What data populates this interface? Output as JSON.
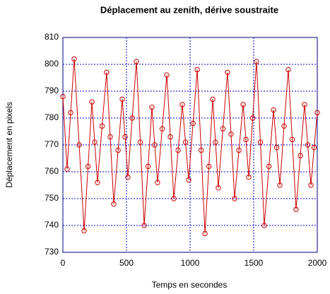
{
  "chart_data": {
    "type": "scatter",
    "title": "Déplacement au zenith, dérive soustraite",
    "x_label": "Temps en secondes",
    "y_label": "Déplacement en pixels",
    "xlim": [
      0,
      2000
    ],
    "xticks": [
      0,
      500,
      1000,
      1500,
      2000
    ],
    "ylim": [
      730,
      810
    ],
    "yticks": [
      730,
      740,
      750,
      760,
      770,
      780,
      790,
      800,
      810
    ],
    "grid": true,
    "grid_color": "#0000cc",
    "color": "#cc0000",
    "x": [
      0,
      33,
      61,
      89,
      128,
      167,
      198,
      228,
      250,
      272,
      308,
      344,
      372,
      400,
      434,
      467,
      489,
      511,
      545,
      578,
      609,
      639,
      670,
      700,
      722,
      744,
      781,
      817,
      845,
      872,
      906,
      939,
      964,
      989,
      1023,
      1056,
      1087,
      1117,
      1148,
      1178,
      1200,
      1222,
      1258,
      1294,
      1322,
      1350,
      1384,
      1417,
      1439,
      1461,
      1492,
      1522,
      1553,
      1583,
      1620,
      1656,
      1681,
      1706,
      1739,
      1772,
      1803,
      1833,
      1867,
      1900,
      1925,
      1950,
      1975,
      2000
    ],
    "values": [
      788,
      761,
      782,
      802,
      770,
      738,
      762,
      786,
      771,
      756,
      777,
      797,
      773,
      748,
      768,
      787,
      773,
      758,
      780,
      801,
      771,
      740,
      762,
      784,
      770,
      756,
      776,
      796,
      773,
      750,
      768,
      785,
      771,
      757,
      778,
      798,
      768,
      737,
      762,
      787,
      771,
      754,
      776,
      797,
      774,
      750,
      768,
      785,
      772,
      758,
      780,
      801,
      771,
      740,
      762,
      783,
      769,
      755,
      777,
      798,
      772,
      746,
      766,
      785,
      770,
      755,
      769,
      782
    ]
  }
}
